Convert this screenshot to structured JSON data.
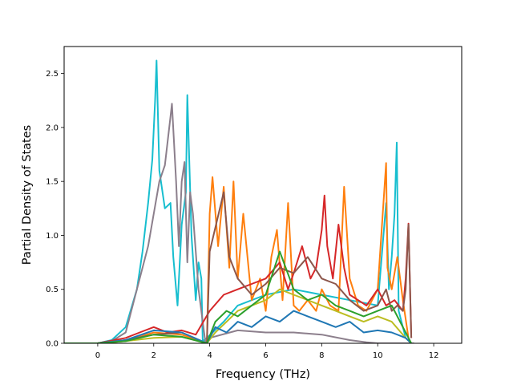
{
  "chart_data": {
    "type": "line",
    "title": "",
    "xlabel": "Frequency (THz)",
    "ylabel": "Partial Density of States",
    "xlim": [
      -1.2,
      13.0
    ],
    "ylim": [
      0.0,
      2.75
    ],
    "x_ticks": [
      0,
      2,
      4,
      6,
      8,
      10,
      12
    ],
    "x_tick_labels": [
      "0",
      "2",
      "4",
      "6",
      "8",
      "10",
      "12"
    ],
    "y_ticks": [
      0.0,
      0.5,
      1.0,
      1.5,
      2.0,
      2.5
    ],
    "y_tick_labels": [
      "0.0",
      "0.5",
      "1.0",
      "1.5",
      "2.0",
      "2.5"
    ],
    "grid": false,
    "legend": "none",
    "series": [
      {
        "color": "#17becf",
        "x": [
          -1.2,
          0.0,
          0.5,
          1.0,
          1.4,
          1.6,
          1.8,
          1.95,
          2.05,
          2.1,
          2.2,
          2.4,
          2.6,
          2.7,
          2.85,
          3.0,
          3.15,
          3.2,
          3.35,
          3.5,
          3.6,
          3.7,
          3.75,
          3.9,
          4.5,
          5.0,
          6.0,
          7.0,
          8.0,
          9.0,
          10.0,
          10.3,
          10.4,
          10.5,
          10.6,
          10.68,
          10.75,
          11.0,
          11.2
        ],
        "y": [
          0.0,
          0.0,
          0.03,
          0.15,
          0.5,
          0.85,
          1.3,
          1.7,
          2.25,
          2.62,
          1.6,
          1.25,
          1.3,
          0.8,
          0.35,
          1.1,
          1.4,
          2.3,
          1.0,
          0.4,
          0.75,
          0.6,
          0.02,
          0.05,
          0.2,
          0.35,
          0.45,
          0.5,
          0.45,
          0.4,
          0.35,
          1.3,
          0.5,
          0.8,
          1.2,
          1.86,
          0.3,
          0.05,
          0.0
        ]
      },
      {
        "color": "#8c7f8c",
        "x": [
          -1.2,
          0.0,
          0.5,
          1.0,
          1.2,
          1.5,
          1.8,
          2.0,
          2.2,
          2.4,
          2.6,
          2.65,
          2.8,
          2.9,
          3.0,
          3.1,
          3.2,
          3.3,
          3.4,
          3.6,
          3.75,
          3.85,
          4.0,
          5.0,
          6.0,
          7.0,
          8.0,
          9.0,
          9.6,
          10.0,
          10.5,
          11.0,
          11.3
        ],
        "y": [
          0.0,
          0.0,
          0.02,
          0.1,
          0.3,
          0.6,
          0.9,
          1.2,
          1.5,
          1.65,
          2.1,
          2.22,
          1.5,
          0.9,
          1.5,
          1.68,
          0.75,
          1.4,
          1.2,
          0.5,
          0.2,
          0.0,
          0.05,
          0.12,
          0.1,
          0.1,
          0.08,
          0.03,
          0.01,
          0.0,
          0.0,
          0.0,
          0.0
        ]
      },
      {
        "color": "#ff7f0e",
        "x": [
          -1.2,
          0.0,
          1.0,
          2.0,
          3.0,
          3.9,
          4.0,
          4.1,
          4.3,
          4.5,
          4.7,
          4.85,
          5.0,
          5.2,
          5.5,
          5.8,
          6.0,
          6.2,
          6.4,
          6.6,
          6.8,
          7.0,
          7.2,
          7.5,
          7.8,
          8.0,
          8.3,
          8.6,
          8.8,
          9.0,
          9.3,
          9.6,
          10.0,
          10.3,
          10.35,
          10.5,
          10.7,
          10.9,
          11.1
        ],
        "y": [
          0.0,
          0.0,
          0.02,
          0.1,
          0.08,
          0.0,
          1.2,
          1.54,
          0.9,
          1.45,
          0.7,
          1.5,
          0.6,
          1.2,
          0.4,
          0.6,
          0.3,
          0.8,
          1.05,
          0.4,
          1.3,
          0.35,
          0.3,
          0.4,
          0.3,
          0.5,
          0.35,
          0.3,
          1.45,
          0.6,
          0.35,
          0.3,
          0.5,
          1.67,
          0.7,
          0.5,
          0.8,
          0.4,
          0.05
        ]
      },
      {
        "color": "#d62728",
        "x": [
          -1.2,
          0.0,
          1.0,
          1.5,
          2.0,
          2.5,
          3.0,
          3.5,
          4.0,
          4.5,
          5.0,
          5.5,
          6.0,
          6.5,
          6.8,
          7.0,
          7.3,
          7.6,
          7.8,
          8.0,
          8.1,
          8.2,
          8.4,
          8.6,
          8.8,
          9.0,
          9.3,
          9.6,
          10.0,
          10.3,
          10.6,
          10.9,
          11.0,
          11.1,
          11.2
        ],
        "y": [
          0.0,
          0.0,
          0.05,
          0.1,
          0.15,
          0.1,
          0.12,
          0.08,
          0.3,
          0.45,
          0.5,
          0.55,
          0.6,
          0.75,
          0.5,
          0.65,
          0.9,
          0.6,
          0.7,
          1.05,
          1.37,
          0.9,
          0.6,
          1.1,
          0.7,
          0.45,
          0.4,
          0.35,
          0.5,
          0.35,
          0.4,
          0.3,
          0.6,
          1.11,
          0.05
        ]
      },
      {
        "color": "#8c564b",
        "x": [
          -1.2,
          0.0,
          1.0,
          2.0,
          3.0,
          3.9,
          4.0,
          4.5,
          4.7,
          5.0,
          5.5,
          6.0,
          6.5,
          7.0,
          7.5,
          8.0,
          8.5,
          9.0,
          9.5,
          10.0,
          10.3,
          10.5,
          10.7,
          10.9,
          11.0,
          11.1,
          11.2
        ],
        "y": [
          0.0,
          0.0,
          0.03,
          0.08,
          0.1,
          0.0,
          0.85,
          1.4,
          0.8,
          0.6,
          0.45,
          0.55,
          0.7,
          0.65,
          0.8,
          0.6,
          0.55,
          0.4,
          0.3,
          0.35,
          0.5,
          0.3,
          0.35,
          0.3,
          0.5,
          1.1,
          0.05
        ]
      },
      {
        "color": "#bcbd22",
        "x": [
          -1.2,
          0.0,
          1.0,
          2.0,
          3.0,
          3.9,
          4.2,
          4.6,
          5.0,
          5.5,
          6.0,
          6.5,
          7.0,
          7.5,
          8.0,
          8.5,
          9.0,
          9.5,
          10.0,
          10.5,
          11.0,
          11.2
        ],
        "y": [
          0.0,
          0.0,
          0.02,
          0.05,
          0.06,
          0.0,
          0.1,
          0.2,
          0.3,
          0.35,
          0.4,
          0.5,
          0.45,
          0.4,
          0.35,
          0.3,
          0.25,
          0.2,
          0.25,
          0.2,
          0.05,
          0.0
        ]
      },
      {
        "color": "#1f77b4",
        "x": [
          -1.2,
          0.0,
          1.0,
          2.0,
          3.0,
          3.9,
          4.2,
          4.6,
          5.0,
          5.5,
          6.0,
          6.5,
          7.0,
          7.5,
          8.0,
          8.5,
          9.0,
          9.5,
          10.0,
          10.5,
          11.0,
          11.2
        ],
        "y": [
          0.0,
          0.0,
          0.03,
          0.12,
          0.1,
          0.0,
          0.15,
          0.1,
          0.2,
          0.15,
          0.25,
          0.2,
          0.3,
          0.25,
          0.2,
          0.15,
          0.2,
          0.1,
          0.12,
          0.1,
          0.05,
          0.0
        ]
      },
      {
        "color": "#2ca02c",
        "x": [
          -1.2,
          0.0,
          1.0,
          2.0,
          3.0,
          3.9,
          4.2,
          4.6,
          5.0,
          5.5,
          6.0,
          6.5,
          7.0,
          7.5,
          8.0,
          8.5,
          9.0,
          9.5,
          10.0,
          10.5,
          11.0,
          11.2
        ],
        "y": [
          0.0,
          0.0,
          0.02,
          0.08,
          0.06,
          0.0,
          0.2,
          0.3,
          0.25,
          0.35,
          0.45,
          0.85,
          0.5,
          0.4,
          0.45,
          0.35,
          0.3,
          0.25,
          0.3,
          0.35,
          0.1,
          0.0
        ]
      }
    ]
  }
}
